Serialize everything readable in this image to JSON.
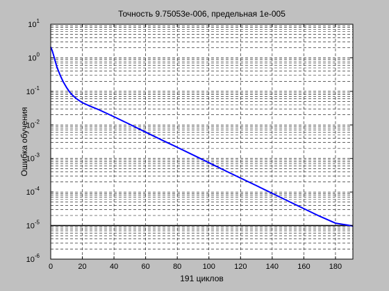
{
  "window": {
    "background": "#c0c0c0"
  },
  "chart_data": {
    "type": "line",
    "title": "Точность 9.75053e-006, предельная 1e-005",
    "xlabel": "191 циклов",
    "ylabel": "Ошибка обучения",
    "xlim": [
      0,
      191
    ],
    "ylim_log10": [
      -6,
      1
    ],
    "y_scale": "log",
    "grid": true,
    "x_ticks": [
      "0",
      "20",
      "40",
      "60",
      "80",
      "100",
      "120",
      "140",
      "160",
      "180"
    ],
    "y_tick_base": "10",
    "y_tick_exponents": [
      "1",
      "0",
      "-1",
      "-2",
      "-3",
      "-4",
      "-5",
      "-6"
    ],
    "series": [
      {
        "color": "#0000ff",
        "points": [
          [
            0,
            2.1
          ],
          [
            1,
            1.6
          ],
          [
            2,
            1.1
          ],
          [
            3,
            0.75
          ],
          [
            4,
            0.52
          ],
          [
            6,
            0.3
          ],
          [
            8,
            0.19
          ],
          [
            10,
            0.13
          ],
          [
            12,
            0.095
          ],
          [
            14,
            0.075
          ],
          [
            16,
            0.062
          ],
          [
            18,
            0.053
          ],
          [
            20,
            0.046
          ],
          [
            25,
            0.036
          ],
          [
            30,
            0.029
          ],
          [
            40,
            0.0175
          ],
          [
            50,
            0.0104
          ],
          [
            60,
            0.0061
          ],
          [
            70,
            0.0036
          ],
          [
            80,
            0.00215
          ],
          [
            90,
            0.00127
          ],
          [
            100,
            0.00075
          ],
          [
            110,
            0.00044
          ],
          [
            120,
            0.00026
          ],
          [
            130,
            0.000155
          ],
          [
            140,
            9.15e-05
          ],
          [
            150,
            5.4e-05
          ],
          [
            160,
            3.2e-05
          ],
          [
            170,
            1.9e-05
          ],
          [
            180,
            1.18e-05
          ],
          [
            191,
            9.75e-06
          ]
        ]
      }
    ],
    "goal": {
      "value": 1e-05,
      "color": "#000000"
    }
  }
}
